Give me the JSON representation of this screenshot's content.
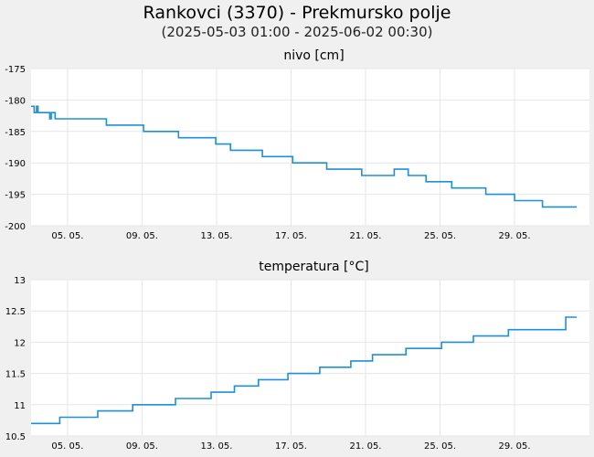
{
  "header": {
    "title": "Rankovci (3370) - Prekmursko polje",
    "subtitle": "(2025-05-03 01:00 - 2025-06-02 00:30)"
  },
  "chart_data": [
    {
      "type": "line",
      "title": "nivo [cm]",
      "xlabel": "",
      "ylabel": "",
      "xlim": [
        "2025-05-03T01:00",
        "2025-06-02T00:30"
      ],
      "ylim": [
        -200,
        -175
      ],
      "yticks": [
        -175,
        -180,
        -185,
        -190,
        -195,
        -200
      ],
      "xtick_labels": [
        "05. 05.",
        "09. 05.",
        "13. 05.",
        "17. 05.",
        "21. 05.",
        "25. 05.",
        "29. 05."
      ],
      "xtick_dates": [
        "2025-05-05",
        "2025-05-09",
        "2025-05-13",
        "2025-05-17",
        "2025-05-21",
        "2025-05-25",
        "2025-05-29"
      ],
      "grid": true,
      "line_color": "#1e90d6",
      "series": [
        {
          "x": [
            "2025-05-03T01:00",
            "2025-05-03T05:00",
            "2025-05-03T05:00",
            "2025-05-03T08:00",
            "2025-05-03T08:00",
            "2025-05-03T10:00",
            "2025-05-03T10:00",
            "2025-05-03T14:00",
            "2025-05-03T14:00",
            "2025-05-04T01:00",
            "2025-05-04T01:00",
            "2025-05-04T03:00",
            "2025-05-04T03:00",
            "2025-05-04T08:00",
            "2025-05-04T08:00",
            "2025-05-04T14:00",
            "2025-05-04T14:00",
            "2025-05-04T16:00",
            "2025-05-04T16:00",
            "2025-05-04T22:00",
            "2025-05-04T22:00",
            "2025-05-07T02:00",
            "2025-05-07T02:00",
            "2025-05-09T02:00",
            "2025-05-09T02:00",
            "2025-05-10T23:00",
            "2025-05-10T23:00",
            "2025-05-12T23:00",
            "2025-05-12T23:00",
            "2025-05-13T18:00",
            "2025-05-13T18:00",
            "2025-05-13T22:00",
            "2025-05-13T22:00",
            "2025-05-14T01:00",
            "2025-05-14T01:00",
            "2025-05-15T11:00",
            "2025-05-15T11:00",
            "2025-05-17T02:00",
            "2025-05-17T02:00",
            "2025-05-18T22:00",
            "2025-05-18T22:00",
            "2025-05-20T19:00",
            "2025-05-20T19:00",
            "2025-05-20T23:00",
            "2025-05-20T23:00",
            "2025-05-21T03:00",
            "2025-05-21T03:00",
            "2025-05-22T13:00",
            "2025-05-22T13:00",
            "2025-05-23T07:00",
            "2025-05-23T07:00",
            "2025-05-24T06:00",
            "2025-05-24T06:00",
            "2025-05-25T15:00",
            "2025-05-25T15:00",
            "2025-05-27T11:00",
            "2025-05-27T11:00",
            "2025-05-29T00:00",
            "2025-05-29T00:00",
            "2025-05-29T05:00",
            "2025-05-29T05:00",
            "2025-05-30T12:00",
            "2025-05-30T12:00",
            "2025-06-01T08:00"
          ],
          "y": [
            -181,
            -181,
            -182,
            -182,
            -181,
            -181,
            -182,
            -182,
            -182,
            -182,
            -183,
            -183,
            -182,
            -182,
            -183,
            -183,
            -183,
            -183,
            -183,
            -183,
            -183,
            -183,
            -184,
            -184,
            -185,
            -185,
            -186,
            -186,
            -187,
            -187,
            -188,
            -188,
            -188,
            -188,
            -188,
            -188,
            -189,
            -189,
            -190,
            -190,
            -191,
            -191,
            -192,
            -192,
            -192,
            -192,
            -192,
            -192,
            -191,
            -191,
            -192,
            -192,
            -193,
            -193,
            -194,
            -194,
            -195,
            -195,
            -196,
            -196,
            -196,
            -196,
            -197,
            -197
          ]
        }
      ]
    },
    {
      "type": "line",
      "title": "temperatura [°C]",
      "xlabel": "",
      "ylabel": "",
      "xlim": [
        "2025-05-03T01:00",
        "2025-06-02T00:30"
      ],
      "ylim": [
        10.5,
        13
      ],
      "yticks": [
        13,
        12.5,
        12,
        11.5,
        11,
        10.5
      ],
      "ytick_labels": [
        "13",
        "12.5",
        "12",
        "11.5",
        "11",
        "10.5"
      ],
      "xtick_labels": [
        "05. 05.",
        "09. 05.",
        "13. 05.",
        "17. 05.",
        "21. 05.",
        "25. 05.",
        "29. 05."
      ],
      "xtick_dates": [
        "2025-05-05",
        "2025-05-09",
        "2025-05-13",
        "2025-05-17",
        "2025-05-21",
        "2025-05-25",
        "2025-05-29"
      ],
      "grid": true,
      "line_color": "#1e90d6",
      "series": [
        {
          "x": [
            "2025-05-03T01:00",
            "2025-05-04T14:00",
            "2025-05-04T14:00",
            "2025-05-06T15:00",
            "2025-05-06T15:00",
            "2025-05-08T12:00",
            "2025-05-08T12:00",
            "2025-05-10T19:00",
            "2025-05-10T19:00",
            "2025-05-12T17:00",
            "2025-05-12T17:00",
            "2025-05-13T23:00",
            "2025-05-13T23:00",
            "2025-05-15T06:00",
            "2025-05-15T06:00",
            "2025-05-16T20:00",
            "2025-05-16T20:00",
            "2025-05-18T13:00",
            "2025-05-18T13:00",
            "2025-05-20T05:00",
            "2025-05-20T05:00",
            "2025-05-21T09:00",
            "2025-05-21T09:00",
            "2025-05-23T04:00",
            "2025-05-23T04:00",
            "2025-05-25T02:00",
            "2025-05-25T02:00",
            "2025-05-26T19:00",
            "2025-05-26T19:00",
            "2025-05-28T16:00",
            "2025-05-28T16:00",
            "2025-05-31T18:00",
            "2025-05-31T18:00",
            "2025-06-01T08:00"
          ],
          "y": [
            10.7,
            10.7,
            10.8,
            10.8,
            10.9,
            10.9,
            11.0,
            11.0,
            11.1,
            11.1,
            11.2,
            11.2,
            11.3,
            11.3,
            11.4,
            11.4,
            11.5,
            11.5,
            11.6,
            11.6,
            11.7,
            11.7,
            11.8,
            11.8,
            11.9,
            11.9,
            12.0,
            12.0,
            12.1,
            12.1,
            12.2,
            12.2,
            12.4,
            12.4
          ]
        }
      ]
    }
  ]
}
